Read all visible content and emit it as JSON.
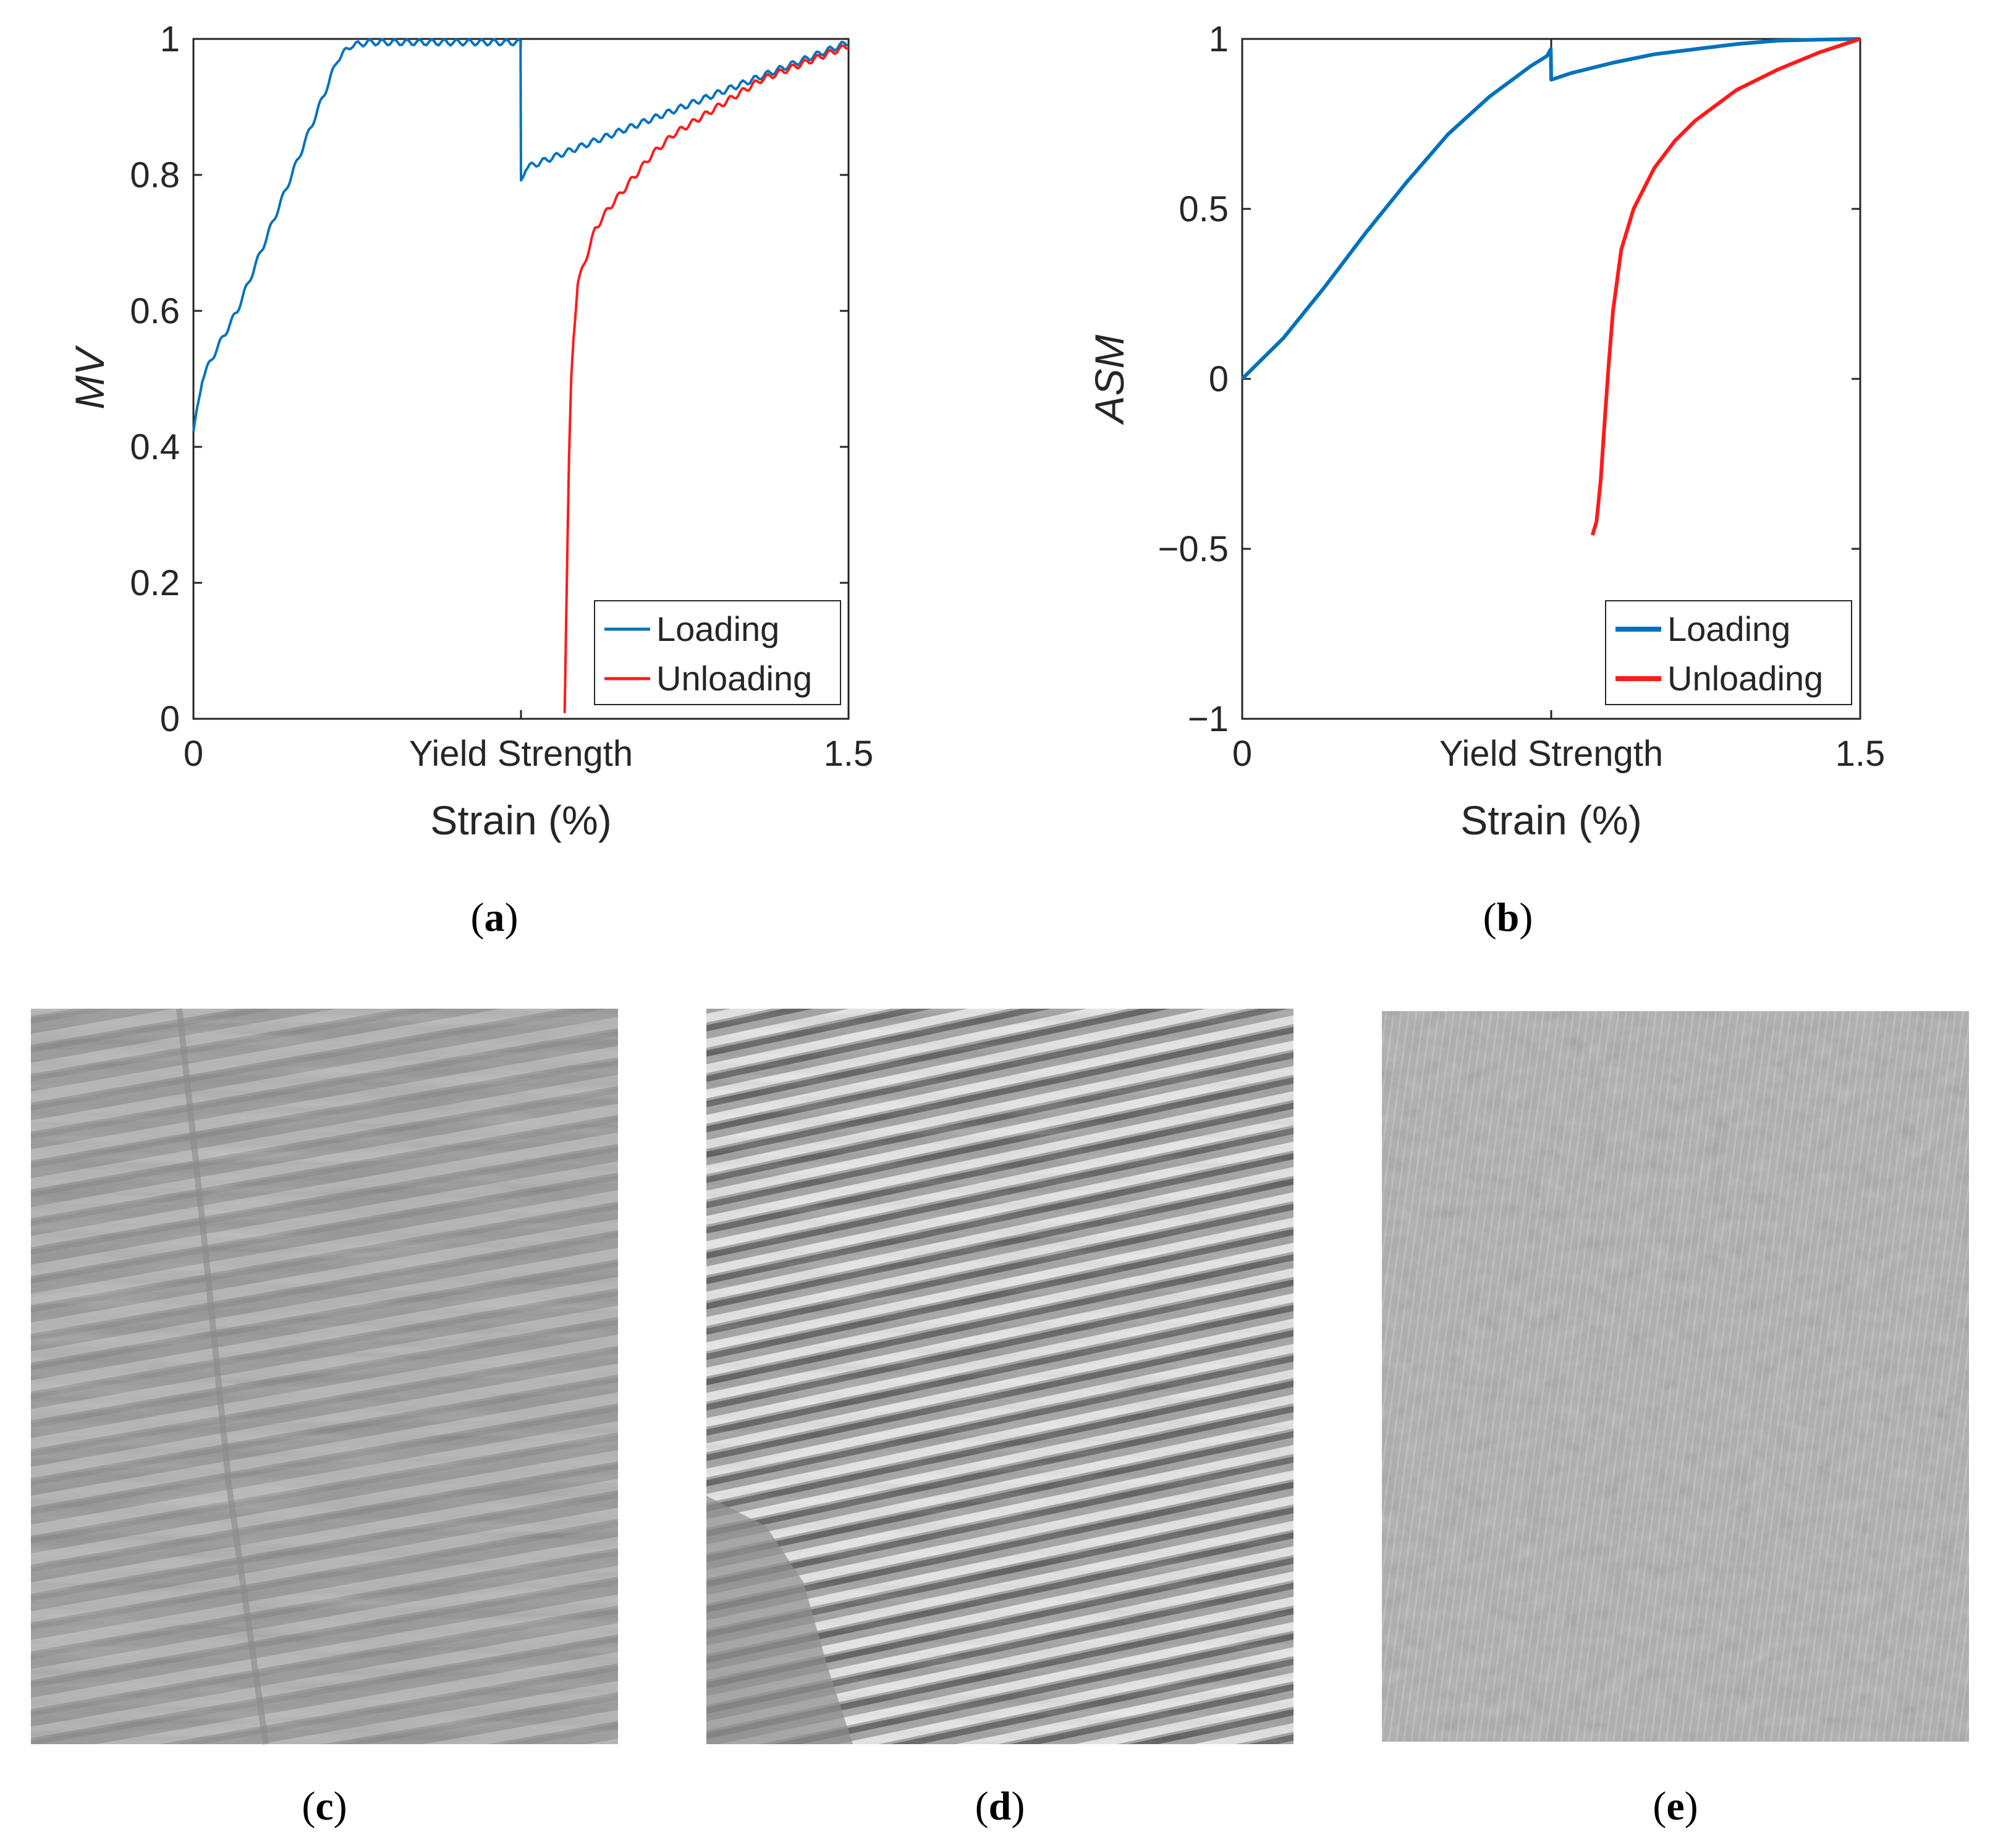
{
  "colors": {
    "loading": "#0072BD",
    "unloading": "#FF1A1A",
    "axis": "#262626"
  },
  "chart_data": [
    {
      "id": "a",
      "type": "line",
      "ylabel": "MV",
      "xlabel": "Strain (%)",
      "x_tick_labels": [
        "0",
        "Yield Strength",
        "1.5"
      ],
      "x_tick_values": [
        0,
        0.75,
        1.5
      ],
      "y_tick_labels": [
        "0",
        "0.2",
        "0.4",
        "0.6",
        "0.8",
        "1"
      ],
      "y_tick_values": [
        0,
        0.2,
        0.4,
        0.6,
        0.8,
        1
      ],
      "xlim": [
        0,
        1.5
      ],
      "ylim": [
        0,
        1
      ],
      "legend": {
        "placement": "bottom-right",
        "entries": [
          "Loading",
          "Unloading"
        ]
      },
      "series": [
        {
          "name": "Loading",
          "x": [
            0,
            0.02,
            0.05,
            0.1,
            0.15,
            0.2,
            0.25,
            0.3,
            0.33,
            0.36,
            0.4,
            0.5,
            0.6,
            0.7,
            0.749,
            0.75,
            0.76,
            0.8,
            0.9,
            1.0,
            1.1,
            1.2,
            1.3,
            1.4,
            1.5
          ],
          "y": [
            0.42,
            0.5,
            0.54,
            0.6,
            0.68,
            0.76,
            0.84,
            0.92,
            0.97,
            0.99,
            0.995,
            0.995,
            0.995,
            0.995,
            0.995,
            0.79,
            0.81,
            0.82,
            0.845,
            0.87,
            0.895,
            0.92,
            0.945,
            0.97,
            0.995
          ]
        },
        {
          "name": "Unloading",
          "x": [
            0.85,
            0.855,
            0.86,
            0.865,
            0.87,
            0.88,
            0.9,
            0.92,
            0.95,
            1.0,
            1.05,
            1.1,
            1.2,
            1.3,
            1.4,
            1.5
          ],
          "y": [
            0.01,
            0.2,
            0.38,
            0.5,
            0.56,
            0.64,
            0.68,
            0.72,
            0.75,
            0.79,
            0.83,
            0.86,
            0.9,
            0.94,
            0.965,
            0.99
          ]
        }
      ],
      "caption": "a"
    },
    {
      "id": "b",
      "type": "line",
      "ylabel": "ASM",
      "xlabel": "Strain (%)",
      "x_tick_labels": [
        "0",
        "Yield Strength",
        "1.5"
      ],
      "x_tick_values": [
        0,
        0.75,
        1.5
      ],
      "y_tick_labels": [
        "−1",
        "−0.5",
        "0",
        "0.5",
        "1"
      ],
      "y_tick_values": [
        -1,
        -0.5,
        0,
        0.5,
        1
      ],
      "xlim": [
        0,
        1.5
      ],
      "ylim": [
        -1,
        1
      ],
      "legend": {
        "placement": "bottom-right",
        "entries": [
          "Loading",
          "Unloading"
        ]
      },
      "series": [
        {
          "name": "Loading",
          "x": [
            0,
            0.05,
            0.1,
            0.2,
            0.3,
            0.4,
            0.5,
            0.6,
            0.7,
            0.74,
            0.749,
            0.75,
            0.8,
            0.9,
            1.0,
            1.1,
            1.2,
            1.3,
            1.4,
            1.5
          ],
          "y": [
            0,
            0.06,
            0.12,
            0.27,
            0.43,
            0.58,
            0.72,
            0.83,
            0.92,
            0.95,
            0.97,
            0.88,
            0.9,
            0.93,
            0.955,
            0.97,
            0.985,
            0.995,
            0.998,
            1.0
          ]
        },
        {
          "name": "Unloading",
          "x": [
            0.85,
            0.86,
            0.87,
            0.88,
            0.89,
            0.9,
            0.92,
            0.95,
            1.0,
            1.05,
            1.1,
            1.2,
            1.3,
            1.4,
            1.5
          ],
          "y": [
            -0.46,
            -0.42,
            -0.3,
            -0.12,
            0.05,
            0.2,
            0.38,
            0.5,
            0.62,
            0.7,
            0.76,
            0.85,
            0.91,
            0.96,
            1.0
          ]
        }
      ],
      "caption": "b"
    }
  ],
  "images": [
    {
      "id": "c",
      "caption": "c",
      "description": "micrograph-faint-bands"
    },
    {
      "id": "d",
      "caption": "d",
      "description": "micrograph-strong-bands"
    },
    {
      "id": "e",
      "caption": "e",
      "description": "micrograph-recovered"
    }
  ]
}
